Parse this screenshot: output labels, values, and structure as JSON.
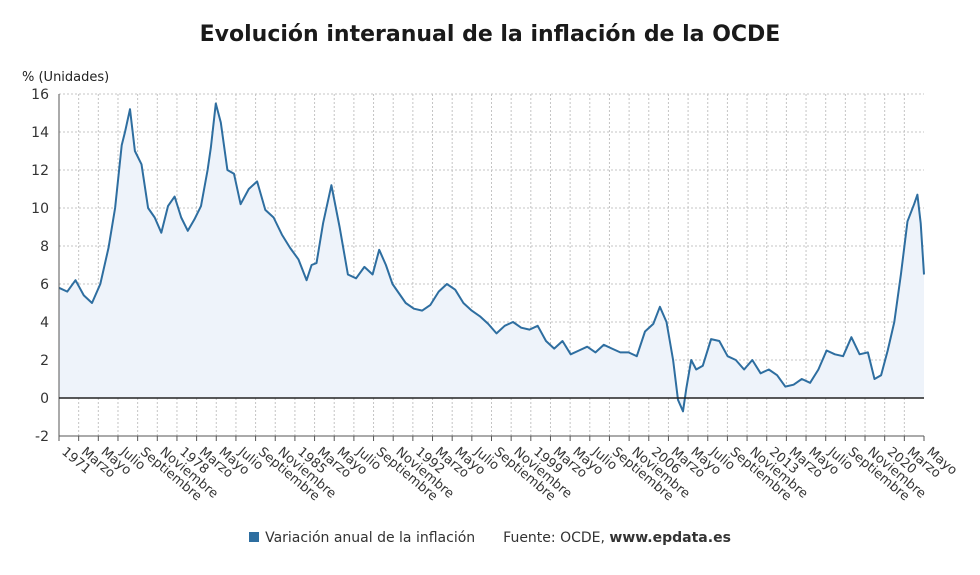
{
  "chart_data": {
    "type": "area",
    "title": "Evolución interanual de la inflación de la OCDE",
    "ylabel": "% (Unidades)",
    "ylim": [
      -2,
      16
    ],
    "y_ticks": [
      -2,
      0,
      2,
      4,
      6,
      8,
      10,
      12,
      14,
      16
    ],
    "x_tick_labels": [
      "1971",
      "Marzo",
      "Mayo",
      "Julio",
      "Septiembre",
      "Noviembre",
      "1978",
      "Marzo",
      "Mayo",
      "Julio",
      "Septiembre",
      "Noviembre",
      "1985",
      "Marzo",
      "Mayo",
      "Julio",
      "Septiembre",
      "Noviembre",
      "1992",
      "Marzo",
      "Mayo",
      "Julio",
      "Septiembre",
      "Noviembre",
      "1999",
      "Marzo",
      "Mayo",
      "Julio",
      "Septiembre",
      "Noviembre",
      "2006",
      "Marzo",
      "Mayo",
      "Julio",
      "Septiembre",
      "Noviembre",
      "2013",
      "Marzo",
      "Mayo",
      "Julio",
      "Septiembre",
      "Noviembre",
      "2020",
      "Marzo",
      "Mayo"
    ],
    "grid": true,
    "legend_position": "bottom",
    "series": [
      {
        "name": "Variación anual de la inflación",
        "color": "#2e6ea0",
        "fill": "#eef3fa",
        "x": [
          1971.0,
          1971.5,
          1972.0,
          1972.5,
          1973.0,
          1973.5,
          1974.0,
          1974.4,
          1974.8,
          1975.0,
          1975.3,
          1975.6,
          1976.0,
          1976.4,
          1976.8,
          1977.2,
          1977.6,
          1978.0,
          1978.4,
          1978.8,
          1979.2,
          1979.6,
          1980.0,
          1980.2,
          1980.5,
          1980.8,
          1981.2,
          1981.6,
          1982.0,
          1982.5,
          1983.0,
          1983.5,
          1984.0,
          1984.5,
          1985.0,
          1985.5,
          1986.0,
          1986.3,
          1986.6,
          1987.0,
          1987.5,
          1988.0,
          1988.5,
          1989.0,
          1989.5,
          1990.0,
          1990.4,
          1990.8,
          1991.2,
          1991.6,
          1992.0,
          1992.5,
          1993.0,
          1993.5,
          1994.0,
          1994.5,
          1995.0,
          1995.5,
          1996.0,
          1996.5,
          1997.0,
          1997.5,
          1998.0,
          1998.5,
          1999.0,
          1999.5,
          2000.0,
          2000.5,
          2001.0,
          2001.5,
          2002.0,
          2002.5,
          2003.0,
          2003.5,
          2004.0,
          2004.5,
          2005.0,
          2005.5,
          2006.0,
          2006.5,
          2007.0,
          2007.4,
          2007.8,
          2008.2,
          2008.5,
          2008.8,
          2009.0,
          2009.3,
          2009.6,
          2010.0,
          2010.5,
          2011.0,
          2011.5,
          2012.0,
          2012.5,
          2013.0,
          2013.5,
          2014.0,
          2014.5,
          2015.0,
          2015.5,
          2016.0,
          2016.5,
          2017.0,
          2017.5,
          2018.0,
          2018.5,
          2019.0,
          2019.5,
          2020.0,
          2020.4,
          2020.8,
          2021.2,
          2021.6,
          2022.0,
          2022.4,
          2022.8,
          2023.0,
          2023.2,
          2023.4
        ],
        "values": [
          5.8,
          5.6,
          6.2,
          5.4,
          5.0,
          6.0,
          7.9,
          10.0,
          13.3,
          14.0,
          15.2,
          13.0,
          12.3,
          10.0,
          9.5,
          8.7,
          10.1,
          10.6,
          9.5,
          8.8,
          9.4,
          10.1,
          12.0,
          13.2,
          15.5,
          14.5,
          12.0,
          11.8,
          10.2,
          11.0,
          11.4,
          9.9,
          9.5,
          8.6,
          7.9,
          7.3,
          6.2,
          7.0,
          7.1,
          9.2,
          11.2,
          9.0,
          6.5,
          6.3,
          6.9,
          6.5,
          7.8,
          7.0,
          6.0,
          5.5,
          5.0,
          4.7,
          4.6,
          4.9,
          5.6,
          6.0,
          5.7,
          5.0,
          4.6,
          4.3,
          3.9,
          3.4,
          3.8,
          4.0,
          3.7,
          3.6,
          3.8,
          3.0,
          2.6,
          3.0,
          2.3,
          2.5,
          2.7,
          2.4,
          2.8,
          2.6,
          2.4,
          2.4,
          2.2,
          3.5,
          3.9,
          4.8,
          4.0,
          2.0,
          -0.1,
          -0.7,
          0.5,
          2.0,
          1.5,
          1.7,
          3.1,
          3.0,
          2.2,
          2.0,
          1.5,
          2.0,
          1.3,
          1.5,
          1.2,
          0.6,
          0.7,
          1.0,
          0.8,
          1.5,
          2.5,
          2.3,
          2.2,
          3.2,
          2.3,
          2.4,
          1.0,
          1.2,
          2.5,
          4.0,
          6.5,
          9.3,
          10.2,
          10.7,
          9.2,
          6.5
        ]
      }
    ]
  },
  "legend": {
    "series_label": "Variación anual de la inflación",
    "source_label": "Fuente: OCDE, ",
    "source_web": "www.epdata.es"
  }
}
